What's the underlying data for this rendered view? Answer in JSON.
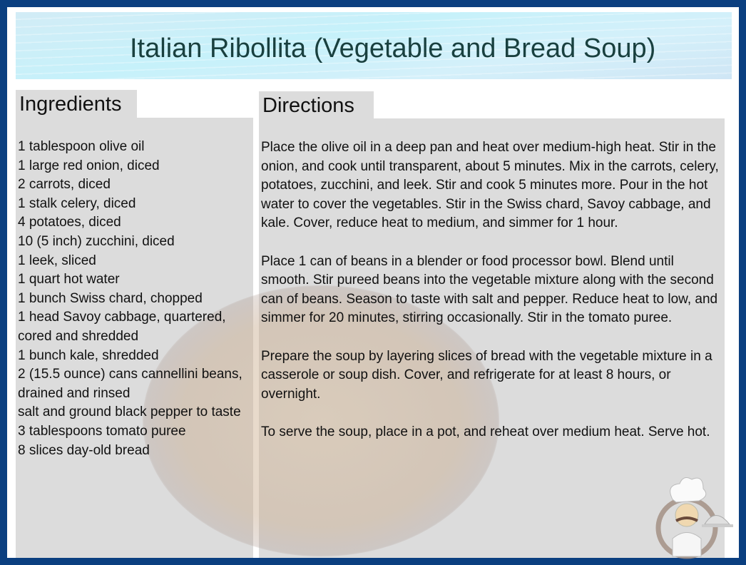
{
  "title": "Italian Ribollita (Vegetable and Bread Soup)",
  "ingredients": {
    "heading": "Ingredients",
    "items": [
      "1 tablespoon olive oil",
      "1 large red onion, diced",
      "2 carrots, diced",
      "1 stalk celery, diced",
      "4 potatoes, diced",
      "10 (5 inch) zucchini, diced",
      "1 leek, sliced",
      "1 quart hot water",
      "1 bunch Swiss chard, chopped",
      "1 head Savoy cabbage, quartered, cored and shredded",
      "1 bunch kale, shredded",
      "2 (15.5 ounce) cans cannellini beans, drained and rinsed",
      "salt and ground black pepper to taste",
      "3 tablespoons tomato puree",
      "8 slices day-old bread"
    ]
  },
  "directions": {
    "heading": "Directions",
    "paragraphs": [
      "Place the olive oil in a deep pan and heat over medium-high heat. Stir in the onion, and cook until transparent, about 5 minutes. Mix in the carrots, celery, potatoes, zucchini, and leek. Stir and cook 5 minutes more. Pour in the hot water to cover the vegetables. Stir in the Swiss chard, Savoy cabbage, and kale. Cover, reduce heat to medium, and simmer for 1 hour.",
      "Place 1 can of beans in a blender or food processor bowl. Blend until smooth. Stir pureed beans into the vegetable mixture along with the second can of beans. Season to taste with salt and pepper. Reduce heat to low, and simmer for 20 minutes, stirring occasionally. Stir in the tomato puree.",
      "Prepare the soup by layering slices of bread with the vegetable mixture in a casserole or soup dish. Cover, and refrigerate for at least 8 hours, or overnight.",
      "To serve the soup, place in a pot, and reheat over medium heat. Serve hot."
    ]
  },
  "colors": {
    "border": "#0b3f80",
    "panel": "#dcdcdc",
    "title": "#19403f"
  },
  "icons": {
    "logo": "chef-icon",
    "background": "bean-soup-bowl-image"
  }
}
